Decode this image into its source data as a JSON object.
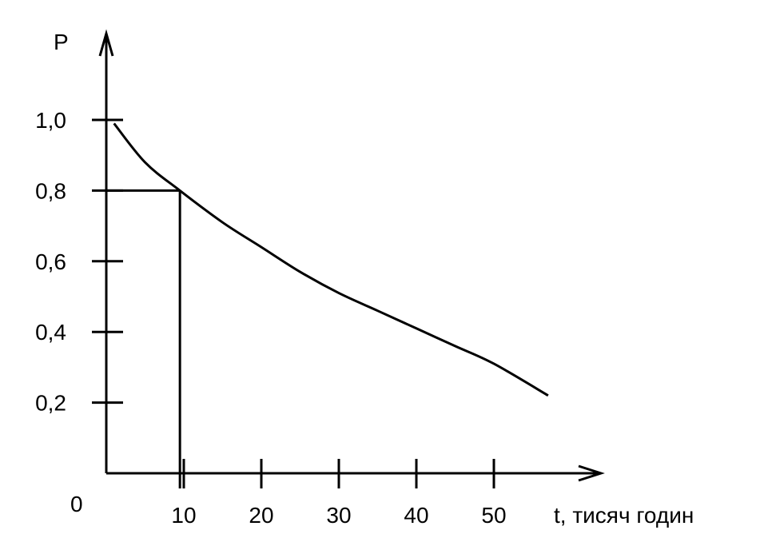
{
  "chart_data": {
    "type": "line",
    "ylabel": "P",
    "xlabel": "t, тисяч годин",
    "origin_label": "0",
    "xlim": [
      0,
      63
    ],
    "ylim": [
      0,
      1.12
    ],
    "x_ticks": [
      {
        "value": 10,
        "label": "10"
      },
      {
        "value": 20,
        "label": "20"
      },
      {
        "value": 30,
        "label": "30"
      },
      {
        "value": 40,
        "label": "40"
      },
      {
        "value": 50,
        "label": "50"
      }
    ],
    "y_ticks": [
      {
        "value": 0.2,
        "label": "0,2"
      },
      {
        "value": 0.4,
        "label": "0,4"
      },
      {
        "value": 0.6,
        "label": "0,6"
      },
      {
        "value": 0.8,
        "label": "0,8"
      },
      {
        "value": 1.0,
        "label": "1,0"
      }
    ],
    "grid": false,
    "series": [
      {
        "x": [
          1,
          5,
          9.5,
          15,
          20,
          25,
          30,
          35,
          40,
          45,
          50,
          57
        ],
        "y": [
          0.99,
          0.88,
          0.8,
          0.71,
          0.64,
          0.57,
          0.51,
          0.46,
          0.41,
          0.36,
          0.31,
          0.22
        ]
      }
    ],
    "guide_point": {
      "x": 9.5,
      "y": 0.8
    }
  }
}
